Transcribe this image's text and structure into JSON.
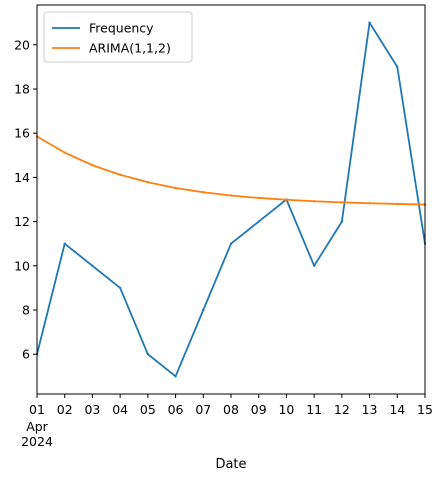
{
  "chart_data": {
    "type": "line",
    "xlabel": "Date",
    "x_tick_labels": [
      "01",
      "02",
      "03",
      "04",
      "05",
      "06",
      "07",
      "08",
      "09",
      "10",
      "11",
      "12",
      "13",
      "14",
      "15"
    ],
    "x_month_label": "Apr",
    "x_year_label": "2024",
    "x": [
      "2024-04-01",
      "2024-04-02",
      "2024-04-03",
      "2024-04-04",
      "2024-04-05",
      "2024-04-06",
      "2024-04-07",
      "2024-04-08",
      "2024-04-09",
      "2024-04-10",
      "2024-04-11",
      "2024-04-12",
      "2024-04-13",
      "2024-04-14",
      "2024-04-15"
    ],
    "ylim": [
      4.2,
      21.8
    ],
    "y_ticks": [
      6,
      8,
      10,
      12,
      14,
      16,
      18,
      20
    ],
    "grid": false,
    "legend_position": "top-left",
    "series": [
      {
        "name": "Frequency",
        "color": "#1f77b4",
        "values": [
          6,
          11,
          10,
          9,
          6,
          5,
          8,
          11,
          12,
          13,
          10,
          12,
          21,
          19,
          11
        ]
      },
      {
        "name": "ARIMA(1,1,2)",
        "color": "#ff7f0e",
        "values": [
          15.85,
          15.12,
          14.55,
          14.12,
          13.78,
          13.52,
          13.33,
          13.18,
          13.07,
          12.99,
          12.92,
          12.87,
          12.83,
          12.8,
          12.77
        ]
      }
    ]
  }
}
